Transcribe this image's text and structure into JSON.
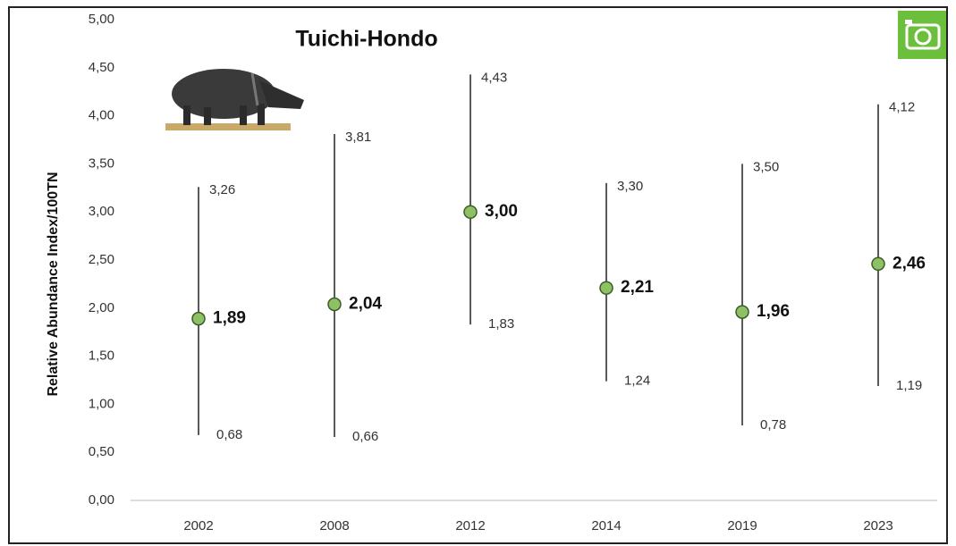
{
  "chart_data": {
    "type": "errorbar",
    "title": "Tuichi-Hondo",
    "y_label": "Relative Abundance Index/100TN",
    "categories": [
      "2002",
      "2008",
      "2012",
      "2014",
      "2019",
      "2023"
    ],
    "values": [
      1.89,
      2.04,
      3.0,
      2.21,
      1.96,
      2.46
    ],
    "value_labels": [
      "1,89",
      "2,04",
      "3,00",
      "2,21",
      "1,96",
      "2,46"
    ],
    "low": [
      0.68,
      0.66,
      1.83,
      1.24,
      0.78,
      1.19
    ],
    "low_labels": [
      "0,68",
      "0,66",
      "1,83",
      "1,24",
      "0,78",
      "1,19"
    ],
    "high": [
      3.26,
      3.81,
      4.43,
      3.3,
      3.5,
      4.12
    ],
    "high_labels": [
      "3,26",
      "3,81",
      "4,43",
      "3,30",
      "3,50",
      "4,12"
    ],
    "color": "#8dc163",
    "ylim": [
      0,
      5
    ],
    "yticks": [
      {
        "value": 0,
        "label": "0,00"
      },
      {
        "value": 0.5,
        "label": "0,50"
      },
      {
        "value": 1,
        "label": "1,00"
      },
      {
        "value": 1.5,
        "label": "1,50"
      },
      {
        "value": 2,
        "label": "2,00"
      },
      {
        "value": 2.5,
        "label": "2,50"
      },
      {
        "value": 3,
        "label": "3,00"
      },
      {
        "value": 3.5,
        "label": "3,50"
      },
      {
        "value": 4,
        "label": "4,00"
      },
      {
        "value": 4.5,
        "label": "4,50"
      },
      {
        "value": 5,
        "label": "5,00"
      }
    ]
  }
}
